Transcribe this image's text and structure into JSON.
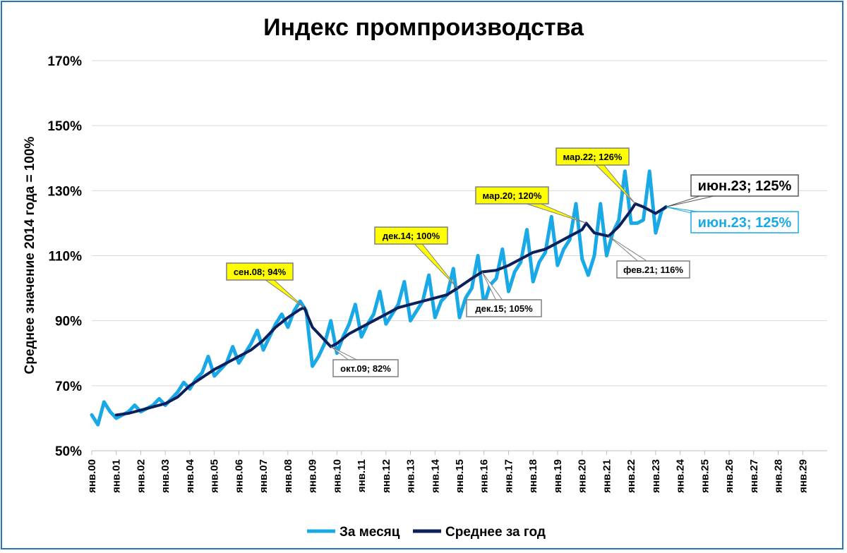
{
  "chart_data": {
    "type": "line",
    "title": "Индекс промпроизводства",
    "ylabel": "Среднее значение 2014 года = 100%",
    "xlabel": "",
    "ylim": [
      50,
      170
    ],
    "yticks": [
      "50%",
      "70%",
      "90%",
      "110%",
      "130%",
      "150%",
      "170%"
    ],
    "xticks": [
      "янв.00",
      "янв.01",
      "янв.02",
      "янв.03",
      "янв.04",
      "янв.05",
      "янв.06",
      "янв.07",
      "янв.08",
      "янв.09",
      "янв.10",
      "янв.11",
      "янв.12",
      "янв.13",
      "янв.14",
      "янв.15",
      "янв.16",
      "янв.17",
      "янв.18",
      "янв.19",
      "янв.20",
      "янв.21",
      "янв.22",
      "янв.23",
      "янв.24",
      "янв.25",
      "янв.26",
      "янв.27",
      "янв.28",
      "янв.29"
    ],
    "grid": true,
    "legend_position": "bottom",
    "series": [
      {
        "name": "За месяц",
        "color": "#19a9e6",
        "points": [
          [
            2000.0,
            61
          ],
          [
            2000.25,
            58
          ],
          [
            2000.5,
            65
          ],
          [
            2000.75,
            62
          ],
          [
            2001.0,
            60
          ],
          [
            2001.25,
            61
          ],
          [
            2001.5,
            62
          ],
          [
            2001.75,
            64
          ],
          [
            2002.0,
            62
          ],
          [
            2002.25,
            63
          ],
          [
            2002.5,
            64
          ],
          [
            2002.75,
            66
          ],
          [
            2003.0,
            64
          ],
          [
            2003.25,
            66
          ],
          [
            2003.5,
            68
          ],
          [
            2003.75,
            71
          ],
          [
            2004.0,
            69
          ],
          [
            2004.25,
            72
          ],
          [
            2004.5,
            74
          ],
          [
            2004.75,
            79
          ],
          [
            2005.0,
            73
          ],
          [
            2005.25,
            75
          ],
          [
            2005.5,
            77
          ],
          [
            2005.75,
            82
          ],
          [
            2006.0,
            77
          ],
          [
            2006.25,
            80
          ],
          [
            2006.5,
            83
          ],
          [
            2006.75,
            87
          ],
          [
            2007.0,
            81
          ],
          [
            2007.25,
            85
          ],
          [
            2007.5,
            89
          ],
          [
            2007.75,
            92
          ],
          [
            2008.0,
            88
          ],
          [
            2008.25,
            93
          ],
          [
            2008.5,
            96
          ],
          [
            2008.75,
            93
          ],
          [
            2009.0,
            76
          ],
          [
            2009.25,
            79
          ],
          [
            2009.5,
            83
          ],
          [
            2009.75,
            90
          ],
          [
            2010.0,
            80
          ],
          [
            2010.25,
            85
          ],
          [
            2010.5,
            89
          ],
          [
            2010.75,
            95
          ],
          [
            2011.0,
            85
          ],
          [
            2011.25,
            89
          ],
          [
            2011.5,
            92
          ],
          [
            2011.75,
            99
          ],
          [
            2012.0,
            89
          ],
          [
            2012.25,
            92
          ],
          [
            2012.5,
            95
          ],
          [
            2012.75,
            102
          ],
          [
            2013.0,
            90
          ],
          [
            2013.25,
            93
          ],
          [
            2013.5,
            96
          ],
          [
            2013.75,
            104
          ],
          [
            2014.0,
            91
          ],
          [
            2014.25,
            96
          ],
          [
            2014.5,
            98
          ],
          [
            2014.75,
            106
          ],
          [
            2015.0,
            91
          ],
          [
            2015.25,
            97
          ],
          [
            2015.5,
            100
          ],
          [
            2015.75,
            110
          ],
          [
            2016.0,
            95
          ],
          [
            2016.25,
            101
          ],
          [
            2016.5,
            103
          ],
          [
            2016.75,
            112
          ],
          [
            2017.0,
            99
          ],
          [
            2017.25,
            105
          ],
          [
            2017.5,
            108
          ],
          [
            2017.75,
            118
          ],
          [
            2018.0,
            102
          ],
          [
            2018.25,
            108
          ],
          [
            2018.5,
            111
          ],
          [
            2018.75,
            122
          ],
          [
            2019.0,
            107
          ],
          [
            2019.25,
            112
          ],
          [
            2019.5,
            115
          ],
          [
            2019.75,
            126
          ],
          [
            2020.0,
            109
          ],
          [
            2020.25,
            104
          ],
          [
            2020.5,
            110
          ],
          [
            2020.75,
            126
          ],
          [
            2021.0,
            110
          ],
          [
            2021.25,
            117
          ],
          [
            2021.5,
            121
          ],
          [
            2021.75,
            136
          ],
          [
            2022.0,
            120
          ],
          [
            2022.25,
            120
          ],
          [
            2022.5,
            121
          ],
          [
            2022.75,
            136
          ],
          [
            2023.0,
            117
          ],
          [
            2023.25,
            124
          ],
          [
            2023.42,
            125
          ]
        ]
      },
      {
        "name": "Среднее за год",
        "color": "#0b1f5c",
        "points": [
          [
            2001.0,
            61
          ],
          [
            2001.5,
            61.5
          ],
          [
            2002.0,
            62.5
          ],
          [
            2002.5,
            63.5
          ],
          [
            2003.0,
            64.5
          ],
          [
            2003.5,
            66.5
          ],
          [
            2004.0,
            70
          ],
          [
            2004.5,
            72.5
          ],
          [
            2005.0,
            75
          ],
          [
            2005.5,
            77
          ],
          [
            2006.0,
            79
          ],
          [
            2006.5,
            81
          ],
          [
            2007.0,
            84
          ],
          [
            2007.5,
            88
          ],
          [
            2008.0,
            91
          ],
          [
            2008.5,
            93.5
          ],
          [
            2008.67,
            94
          ],
          [
            2009.0,
            88
          ],
          [
            2009.5,
            84
          ],
          [
            2009.75,
            82
          ],
          [
            2010.0,
            83
          ],
          [
            2010.5,
            86
          ],
          [
            2011.0,
            88
          ],
          [
            2011.5,
            90
          ],
          [
            2012.0,
            92
          ],
          [
            2012.5,
            94
          ],
          [
            2013.0,
            95
          ],
          [
            2013.5,
            96
          ],
          [
            2014.0,
            97
          ],
          [
            2014.5,
            98
          ],
          [
            2014.92,
            100
          ],
          [
            2015.5,
            103
          ],
          [
            2015.92,
            105
          ],
          [
            2016.5,
            105.5
          ],
          [
            2017.0,
            107
          ],
          [
            2017.5,
            109
          ],
          [
            2018.0,
            111
          ],
          [
            2018.5,
            112
          ],
          [
            2019.0,
            114
          ],
          [
            2019.5,
            116
          ],
          [
            2020.0,
            118
          ],
          [
            2020.17,
            120
          ],
          [
            2020.5,
            117
          ],
          [
            2021.08,
            116
          ],
          [
            2021.5,
            119
          ],
          [
            2022.0,
            124
          ],
          [
            2022.17,
            126
          ],
          [
            2022.5,
            125
          ],
          [
            2023.0,
            123
          ],
          [
            2023.42,
            125
          ]
        ]
      }
    ],
    "annotations": [
      {
        "label": "сен.08; 94%",
        "style": "yellow"
      },
      {
        "label": "окт.09; 82%",
        "style": "white"
      },
      {
        "label": "дек.14; 100%",
        "style": "yellow"
      },
      {
        "label": "дек.15; 105%",
        "style": "white"
      },
      {
        "label": "мар.20; 120%",
        "style": "yellow"
      },
      {
        "label": "фев.21; 116%",
        "style": "white"
      },
      {
        "label": "мар.22; 126%",
        "style": "yellow"
      },
      {
        "label": "июн.23; 125%",
        "style": "big-black"
      },
      {
        "label": "июн.23; 125%",
        "style": "big-blue"
      }
    ]
  }
}
